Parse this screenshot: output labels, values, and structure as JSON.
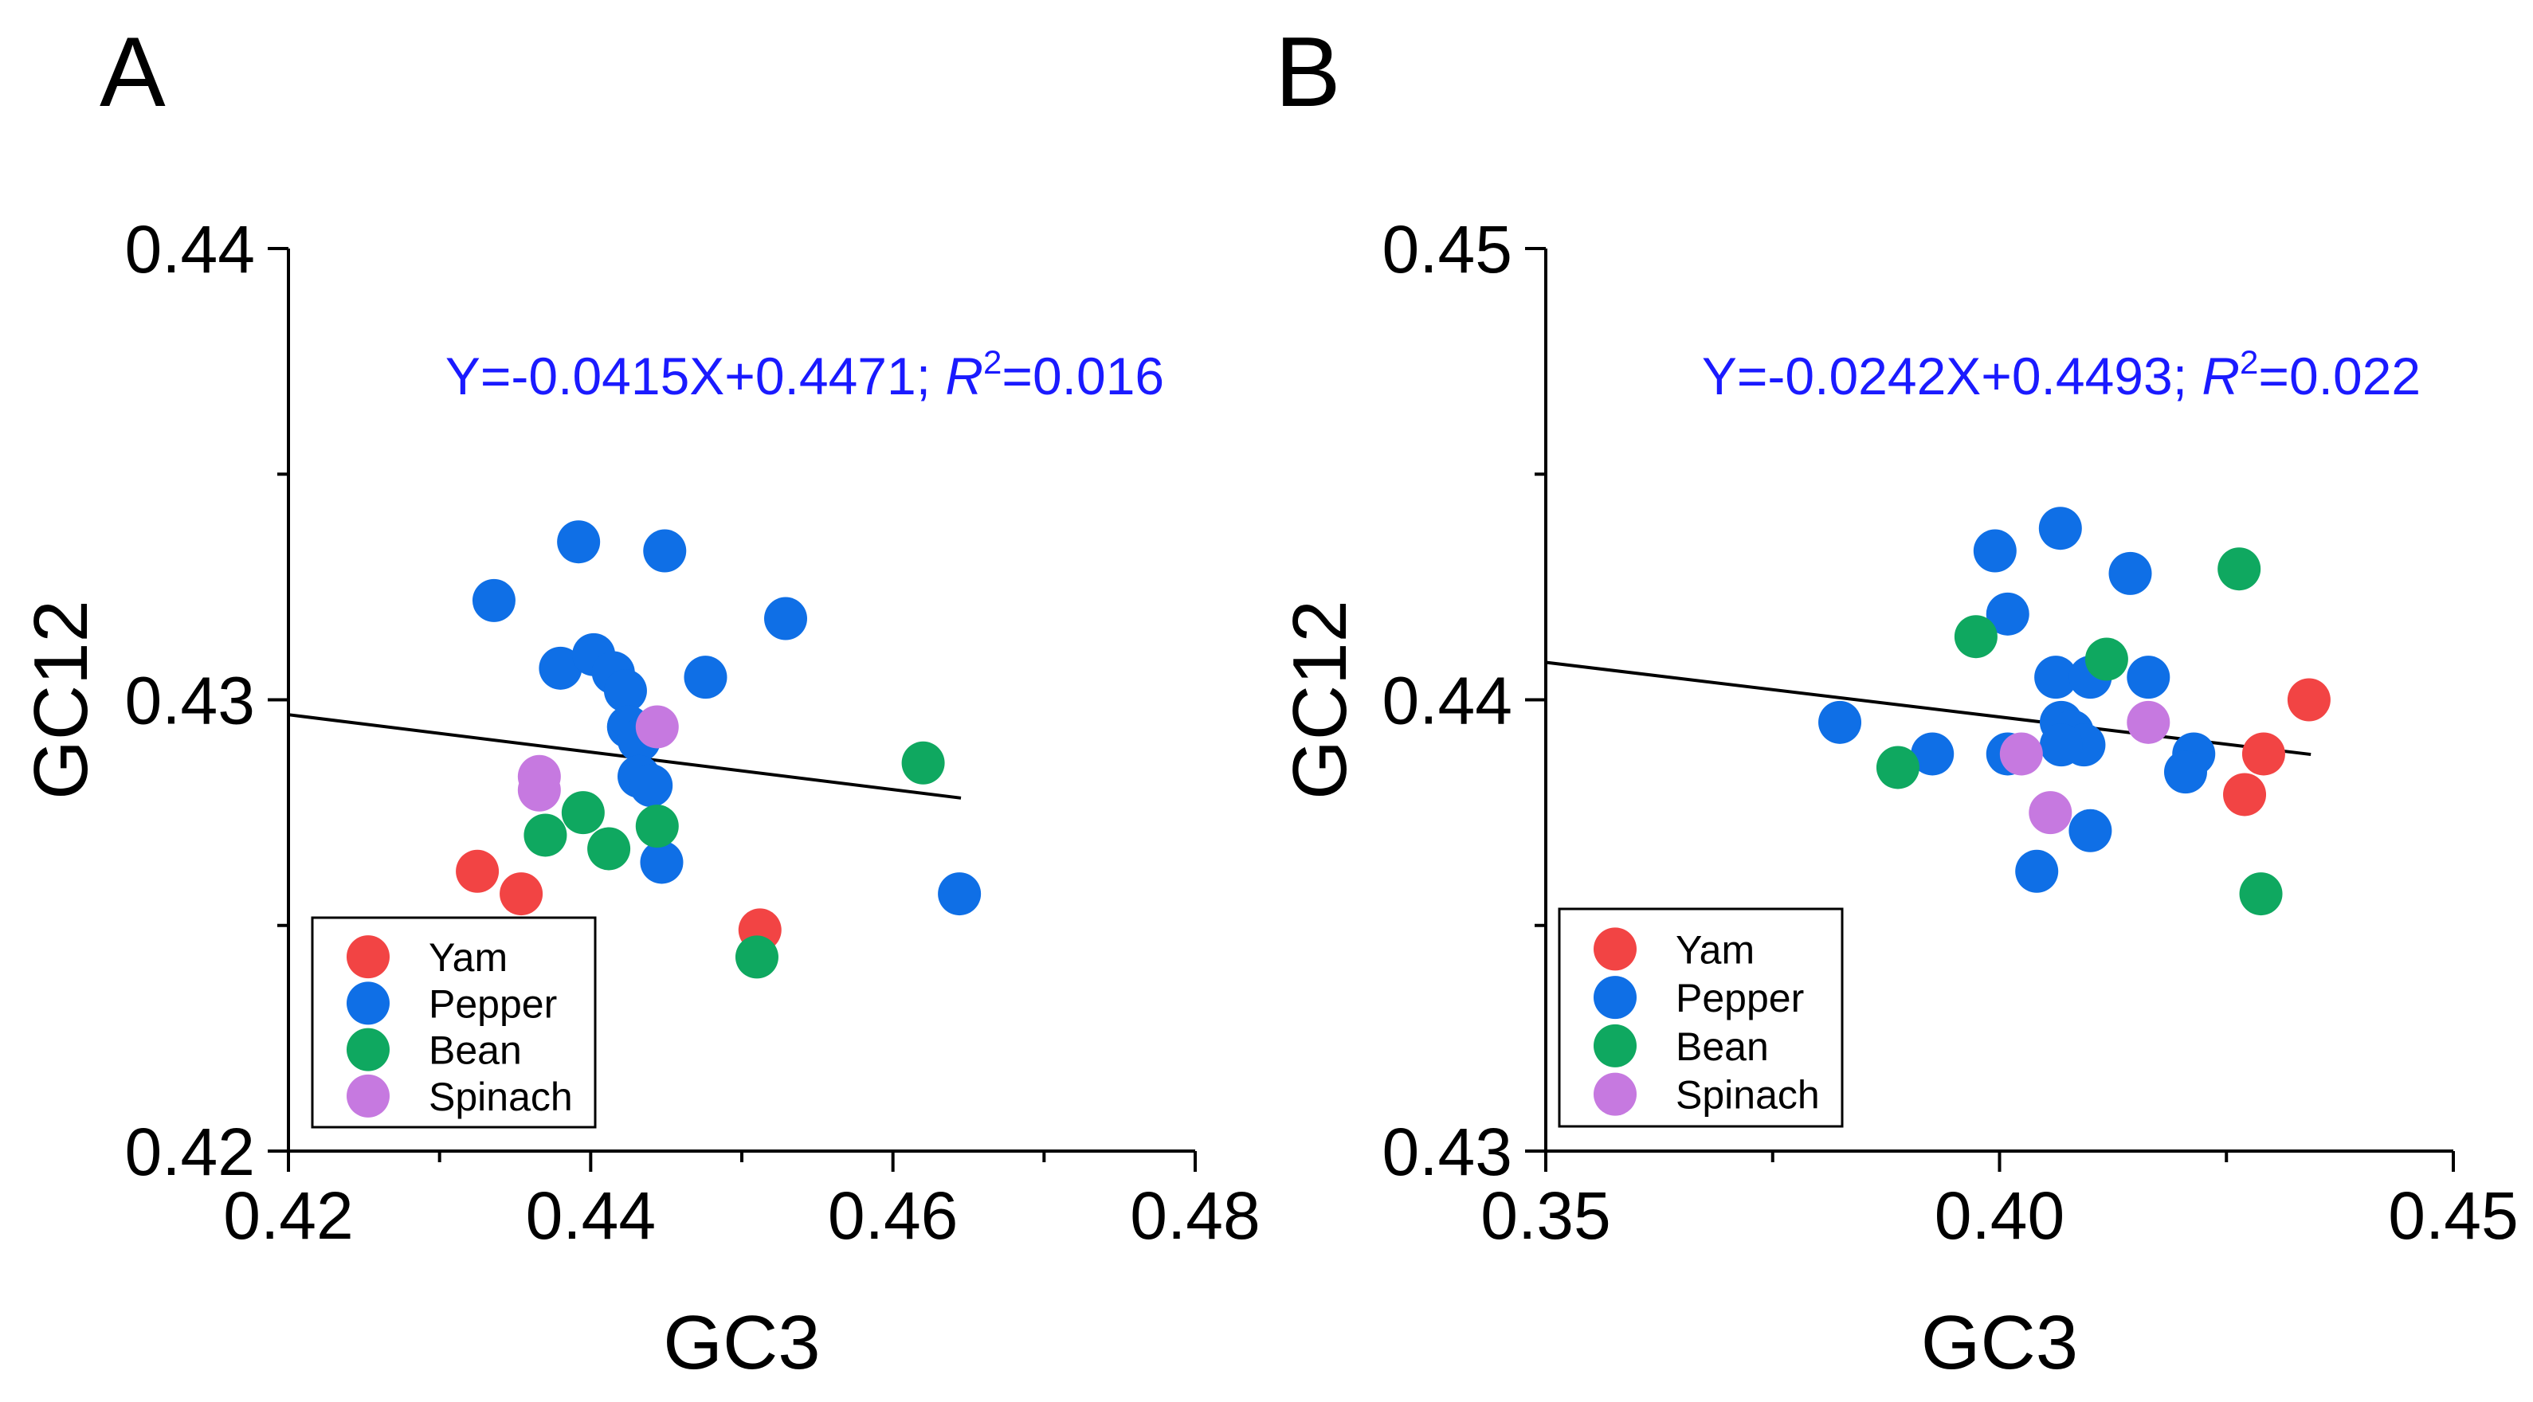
{
  "colors": {
    "Yam": "#f24444",
    "Pepper": "#0f6fe6",
    "Bean": "#0fa860",
    "Spinach": "#c679e0"
  },
  "chart_data": [
    {
      "type": "scatter",
      "panel_label": "A",
      "xlabel": "GC3",
      "ylabel": "GC12",
      "xlim": [
        0.42,
        0.48
      ],
      "ylim": [
        0.42,
        0.44
      ],
      "xticks": [
        0.42,
        0.44,
        0.46,
        0.48
      ],
      "xtick_labels": [
        "0.42",
        "0.44",
        "0.46",
        "0.48"
      ],
      "yticks": [
        0.42,
        0.43,
        0.44
      ],
      "ytick_labels": [
        "0.42",
        "0.43",
        "0.44"
      ],
      "grid": false,
      "legend_position": "bottom-left",
      "annotation": {
        "prefix": "Y=-0.0415X+0.4471; ",
        "r": "R",
        "sup": "2",
        "suffix": "=0.016"
      },
      "fit_line": {
        "slope": -0.0415,
        "intercept": 0.4471,
        "x_range": [
          0.42,
          0.4645
        ]
      },
      "series": [
        {
          "name": "Yam",
          "color": "#f24444",
          "points": [
            [
              0.4325,
              0.4262
            ],
            [
              0.4354,
              0.4257
            ],
            [
              0.4512,
              0.4249
            ]
          ]
        },
        {
          "name": "Pepper",
          "color": "#0f6fe6",
          "points": [
            [
              0.4336,
              0.4322
            ],
            [
              0.4392,
              0.4335
            ],
            [
              0.4449,
              0.4333
            ],
            [
              0.4529,
              0.4318
            ],
            [
              0.438,
              0.4307
            ],
            [
              0.4402,
              0.431
            ],
            [
              0.4415,
              0.4306
            ],
            [
              0.4423,
              0.4302
            ],
            [
              0.4476,
              0.4305
            ],
            [
              0.4425,
              0.4294
            ],
            [
              0.4432,
              0.4291
            ],
            [
              0.4432,
              0.4283
            ],
            [
              0.444,
              0.4281
            ],
            [
              0.4447,
              0.4264
            ],
            [
              0.4644,
              0.4257
            ]
          ]
        },
        {
          "name": "Bean",
          "color": "#0fa860",
          "points": [
            [
              0.462,
              0.4286
            ],
            [
              0.4395,
              0.4275
            ],
            [
              0.437,
              0.427
            ],
            [
              0.4412,
              0.4267
            ],
            [
              0.4444,
              0.4272
            ],
            [
              0.451,
              0.4243
            ]
          ]
        },
        {
          "name": "Spinach",
          "color": "#c679e0",
          "points": [
            [
              0.4444,
              0.4294
            ],
            [
              0.4366,
              0.4283
            ],
            [
              0.4366,
              0.428
            ]
          ]
        }
      ]
    },
    {
      "type": "scatter",
      "panel_label": "B",
      "xlabel": "GC3",
      "ylabel": "GC12",
      "xlim": [
        0.35,
        0.45
      ],
      "ylim": [
        0.43,
        0.45
      ],
      "xticks": [
        0.35,
        0.4,
        0.45
      ],
      "xtick_labels": [
        "0.35",
        "0.40",
        "0.45"
      ],
      "yticks": [
        0.43,
        0.44,
        0.45
      ],
      "ytick_labels": [
        "0.43",
        "0.44",
        "0.45"
      ],
      "grid": false,
      "legend_position": "bottom-left",
      "annotation": {
        "prefix": "Y=-0.0242X+0.4493; ",
        "r": "R",
        "sup": "2",
        "suffix": "=0.022"
      },
      "fit_line": {
        "slope": -0.0242,
        "intercept": 0.4493,
        "x_range": [
          0.35,
          0.4343
        ]
      },
      "series": [
        {
          "name": "Yam",
          "color": "#f24444",
          "points": [
            [
              0.4341,
              0.44
            ],
            [
              0.4291,
              0.4388
            ],
            [
              0.427,
              0.4379
            ]
          ]
        },
        {
          "name": "Pepper",
          "color": "#0f6fe6",
          "points": [
            [
              0.4067,
              0.4438
            ],
            [
              0.3995,
              0.4433
            ],
            [
              0.4144,
              0.4428
            ],
            [
              0.4009,
              0.4419
            ],
            [
              0.4062,
              0.4405
            ],
            [
              0.41,
              0.4405
            ],
            [
              0.4164,
              0.4405
            ],
            [
              0.3824,
              0.4395
            ],
            [
              0.4068,
              0.4395
            ],
            [
              0.408,
              0.4393
            ],
            [
              0.4093,
              0.439
            ],
            [
              0.4068,
              0.439
            ],
            [
              0.3926,
              0.4388
            ],
            [
              0.4009,
              0.4388
            ],
            [
              0.4214,
              0.4388
            ],
            [
              0.4205,
              0.4384
            ],
            [
              0.41,
              0.4371
            ],
            [
              0.4041,
              0.4362
            ]
          ]
        },
        {
          "name": "Bean",
          "color": "#0fa860",
          "points": [
            [
              0.4264,
              0.4429
            ],
            [
              0.3974,
              0.4414
            ],
            [
              0.4118,
              0.4409
            ],
            [
              0.3888,
              0.4385
            ],
            [
              0.4288,
              0.4357
            ]
          ]
        },
        {
          "name": "Spinach",
          "color": "#c679e0",
          "points": [
            [
              0.4164,
              0.4395
            ],
            [
              0.4024,
              0.4388
            ],
            [
              0.4056,
              0.4375
            ]
          ]
        }
      ]
    }
  ]
}
